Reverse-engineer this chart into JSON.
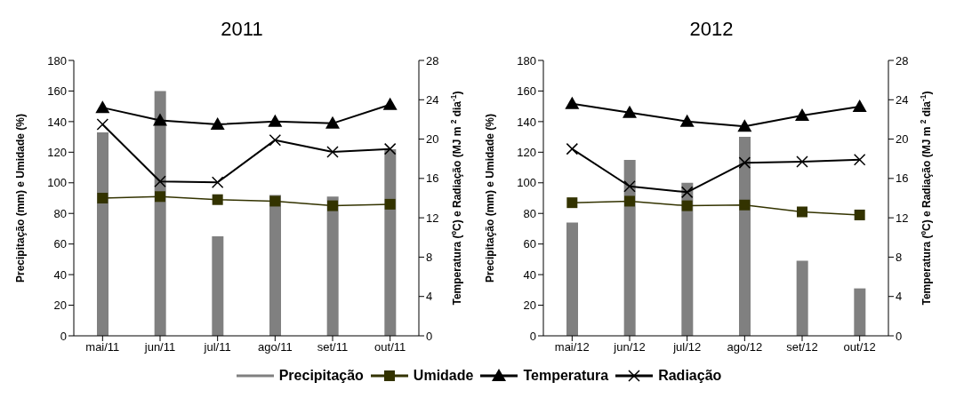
{
  "chart_data": [
    {
      "type": "bar",
      "title": "2011",
      "categories": [
        "mai/11",
        "jun/11",
        "jul/11",
        "ago/11",
        "set/11",
        "out/11"
      ],
      "ylabel": "Precipitação (mm)  e Umidade (%)",
      "y2label": "Temperatura (ºC) e Radiação (MJ m  $^{2}$ dia$^{-1}$)",
      "ylim": [
        0,
        180
      ],
      "yticks": [
        0,
        20,
        40,
        60,
        80,
        100,
        120,
        140,
        160,
        180
      ],
      "y2lim": [
        0,
        28
      ],
      "y2ticks": [
        0,
        4,
        8,
        12,
        16,
        20,
        24,
        28
      ],
      "grid": false,
      "legend": "bottom",
      "series": [
        {
          "name": "Precipitação",
          "color": "#808080",
          "values": [
            133,
            160,
            65,
            92,
            91,
            122
          ]
        },
        {
          "name": "Umidade",
          "type": "line",
          "marker": "square",
          "color": "#333300",
          "values": [
            90,
            91,
            89,
            88,
            85,
            86
          ]
        },
        {
          "name": "Temperatura",
          "type": "line",
          "marker": "triangle",
          "axis": "y2",
          "color": "#000000",
          "values": [
            23.2,
            21.9,
            21.5,
            21.8,
            21.6,
            23.5
          ]
        },
        {
          "name": "Radiação",
          "type": "line",
          "marker": "cross",
          "axis": "y2",
          "color": "#000000",
          "values": [
            21.5,
            15.7,
            15.6,
            19.9,
            18.7,
            19.0
          ]
        }
      ]
    },
    {
      "type": "bar",
      "title": "2012",
      "categories": [
        "mai/12",
        "jun/12",
        "jul/12",
        "ago/12",
        "set/12",
        "out/12"
      ],
      "ylabel": "Precipitação (mm)  e Umidade (%)",
      "y2label": "Temperatura (ºC) e Radiação (MJ m  $^{2}$ dia$^{-1}$)",
      "ylim": [
        0,
        180
      ],
      "yticks": [
        0,
        20,
        40,
        60,
        80,
        100,
        120,
        140,
        160,
        180
      ],
      "y2lim": [
        0,
        28
      ],
      "y2ticks": [
        0,
        4,
        8,
        12,
        16,
        20,
        24,
        28
      ],
      "grid": false,
      "series": [
        {
          "color": "#808080",
          "values": [
            74,
            115,
            100,
            130,
            49,
            31
          ]
        },
        {
          "type": "line",
          "marker": "square",
          "color": "#333300",
          "values": [
            87,
            88,
            85,
            85.5,
            81,
            79
          ]
        },
        {
          "type": "line",
          "marker": "triangle",
          "axis": "y2",
          "color": "#000000",
          "values": [
            23.6,
            22.7,
            21.8,
            21.3,
            22.4,
            23.3
          ]
        },
        {
          "type": "line",
          "marker": "cross",
          "axis": "y2",
          "color": "#000000",
          "values": [
            19.0,
            15.2,
            14.6,
            17.6,
            17.7,
            17.9
          ]
        }
      ]
    }
  ]
}
